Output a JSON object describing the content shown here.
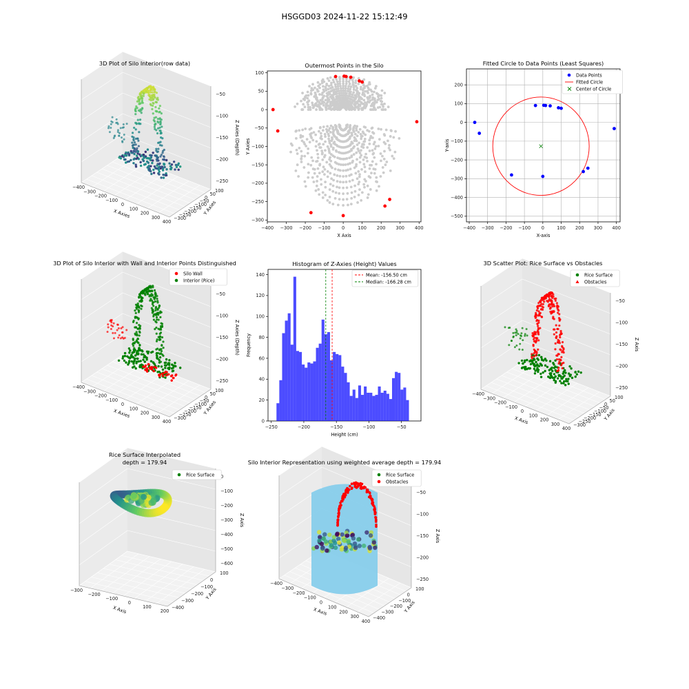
{
  "suptitle": "HSGGD03 2024-11-22 15:12:49",
  "chart_data": [
    {
      "id": "p1",
      "type": "scatter3d",
      "title": "3D Plot of Silo Interior(row data)",
      "xlabel": "X Axies",
      "ylabel": "Y Axies",
      "zlabel": "Z Axies (Depth)",
      "xticks": [
        "−400",
        "−300",
        "−200",
        "−100",
        "0",
        "100",
        "200",
        "300",
        "400"
      ],
      "yticks": [
        "100",
        "50",
        "0",
        "−50",
        "−100",
        "−150",
        "−200",
        "−250",
        "−300"
      ],
      "zticks": [
        "−50",
        "−100",
        "−150",
        "−200",
        "−250"
      ],
      "colormap": "viridis"
    },
    {
      "id": "p2",
      "type": "scatter",
      "title": "Outermost Points in the Silo",
      "xlabel": "X Axis",
      "ylabel": "Y Axies",
      "xticks": [
        "−400",
        "−300",
        "−200",
        "−100",
        "0",
        "100",
        "200",
        "300",
        "400"
      ],
      "yticks": [
        "100",
        "50",
        "0",
        "−50",
        "−100",
        "−150",
        "−200",
        "−250",
        "−300"
      ],
      "xlim": [
        -400,
        410
      ],
      "ylim": [
        -305,
        105
      ],
      "outermost_points": [
        [
          -370,
          0
        ],
        [
          -345,
          -58
        ],
        [
          -170,
          -280
        ],
        [
          0,
          -288
        ],
        [
          220,
          -262
        ],
        [
          245,
          -244
        ],
        [
          388,
          -33
        ],
        [
          100,
          75
        ],
        [
          85,
          78
        ],
        [
          40,
          88
        ],
        [
          15,
          90
        ],
        [
          -40,
          90
        ],
        [
          5,
          91
        ]
      ],
      "colors": {
        "interior": "#cccccc",
        "outermost": "#ff0000"
      }
    },
    {
      "id": "p3",
      "type": "scatter",
      "title": "Fitted Circle to Data Points (Least Squares)",
      "xlabel": "X-axis",
      "ylabel": "Y-axis",
      "xticks": [
        "−400",
        "−300",
        "−200",
        "−100",
        "0",
        "100",
        "200",
        "300",
        "400"
      ],
      "yticks": [
        "200",
        "100",
        "0",
        "−100",
        "−200",
        "−300",
        "−400",
        "−500"
      ],
      "xlim": [
        -415,
        420
      ],
      "ylim": [
        -530,
        285
      ],
      "legend": [
        "Data Points",
        "Fitted Circle",
        "Center of Circle"
      ],
      "data_points": [
        [
          -370,
          0
        ],
        [
          -345,
          -58
        ],
        [
          -170,
          -280
        ],
        [
          0,
          -288
        ],
        [
          220,
          -262
        ],
        [
          245,
          -244
        ],
        [
          388,
          -33
        ],
        [
          100,
          75
        ],
        [
          85,
          78
        ],
        [
          40,
          88
        ],
        [
          15,
          90
        ],
        [
          -40,
          90
        ],
        [
          5,
          91
        ]
      ],
      "circle": {
        "cx": -10,
        "cy": -127,
        "r": 262
      },
      "colors": {
        "points": "#0000ff",
        "circle": "#ff0000",
        "center": "#008000"
      }
    },
    {
      "id": "p4",
      "type": "scatter3d",
      "title": "3D Plot of Silo Interior with Wall and Interior Points Distinguished",
      "xlabel": "X Axies",
      "ylabel": "Y Axies",
      "zlabel": "Z Axies (Depth)",
      "xticks": [
        "−400",
        "−300",
        "−200",
        "−100",
        "0",
        "100",
        "200",
        "300",
        "400"
      ],
      "yticks": [
        "100",
        "50",
        "0",
        "−50",
        "−100",
        "−150",
        "−200",
        "−250",
        "−300"
      ],
      "zticks": [
        "−50",
        "−100",
        "−150",
        "−200",
        "−250"
      ],
      "legend": [
        "Silo Wall",
        "Interior (Rice)"
      ],
      "colors": {
        "wall": "#ff0000",
        "interior": "#008000"
      }
    },
    {
      "id": "p5",
      "type": "bar",
      "title": "Histogram of Z-Axies (Height) Values",
      "xlabel": "Height (cm)",
      "ylabel": "Frequency",
      "xticks": [
        "−250",
        "−200",
        "−150",
        "−100",
        "−50"
      ],
      "yticks": [
        "0",
        "20",
        "40",
        "60",
        "80",
        "100",
        "120",
        "140"
      ],
      "xlim": [
        -255,
        -20
      ],
      "ylim": [
        0,
        145
      ],
      "bin_start": -242,
      "bin_width": 4.33,
      "values": [
        17,
        39,
        84,
        96,
        103,
        73,
        138,
        67,
        66,
        54,
        51,
        56,
        55,
        57,
        70,
        74,
        97,
        83,
        85,
        58,
        66,
        64,
        63,
        52,
        46,
        37,
        24,
        30,
        22,
        34,
        25,
        33,
        27,
        27,
        24,
        25,
        33,
        27,
        29,
        26,
        21,
        41,
        47,
        46,
        30,
        32,
        20
      ],
      "lines": [
        {
          "label": "Mean: -156.50 cm",
          "value": -156.5,
          "color": "#ff0000"
        },
        {
          "label": "Median: -166.28 cm",
          "value": -166.28,
          "color": "#008000"
        }
      ],
      "color": "#0000ff"
    },
    {
      "id": "p6",
      "type": "scatter3d",
      "title": "3D Scatter Plot: Rice Surface vs Obstacles",
      "xlabel": "X Axis",
      "ylabel": "Y Axis",
      "zlabel": "Z Axis",
      "xticks": [
        "−400",
        "−300",
        "−200",
        "−100",
        "0",
        "100",
        "200",
        "300",
        "400"
      ],
      "yticks": [
        "100",
        "50",
        "0",
        "−50",
        "−100",
        "−150",
        "−200",
        "−250",
        "−300"
      ],
      "zticks": [
        "−50",
        "−100",
        "−150",
        "−200",
        "−250"
      ],
      "legend": [
        "Rice Surface",
        "Obstacles"
      ],
      "colors": {
        "rice": "#008000",
        "obstacles": "#ff0000"
      }
    },
    {
      "id": "p7",
      "type": "surface3d",
      "title": "Rice Surface Interpolated",
      "subtitle": "depth = 179.94",
      "xlabel": "X Axis",
      "ylabel": "Y Axis",
      "zlabel": "Z Axis",
      "xticks": [
        "−300",
        "−200",
        "−100",
        "0",
        "100",
        "200"
      ],
      "yticks": [
        "100",
        "0",
        "−100",
        "−200",
        "−300",
        "−400"
      ],
      "zticks": [
        "0",
        "−100",
        "−200",
        "−300",
        "−400",
        "−500",
        "−600"
      ],
      "legend": [
        "Rice Surface"
      ],
      "colors": {
        "rice": "#008000"
      }
    },
    {
      "id": "p8",
      "type": "surface3d",
      "title": "Silo Interior Representation using weighted average depth = 179.94",
      "xlabel": "X Axis",
      "ylabel": "Y Axis",
      "zlabel": "Z Axis",
      "xticks": [
        "−400",
        "−300",
        "−200",
        "−100",
        "0",
        "100",
        "200",
        "300",
        "400"
      ],
      "yticks": [
        "100",
        "0",
        "−100",
        "−200",
        "−300",
        "−400"
      ],
      "zticks": [
        "−50",
        "−100",
        "−150",
        "−200",
        "−250"
      ],
      "legend": [
        "Rice Surface",
        "Obstacles"
      ],
      "colors": {
        "rice": "#008000",
        "obstacles": "#ff0000",
        "silo": "#87ceeb"
      }
    }
  ]
}
